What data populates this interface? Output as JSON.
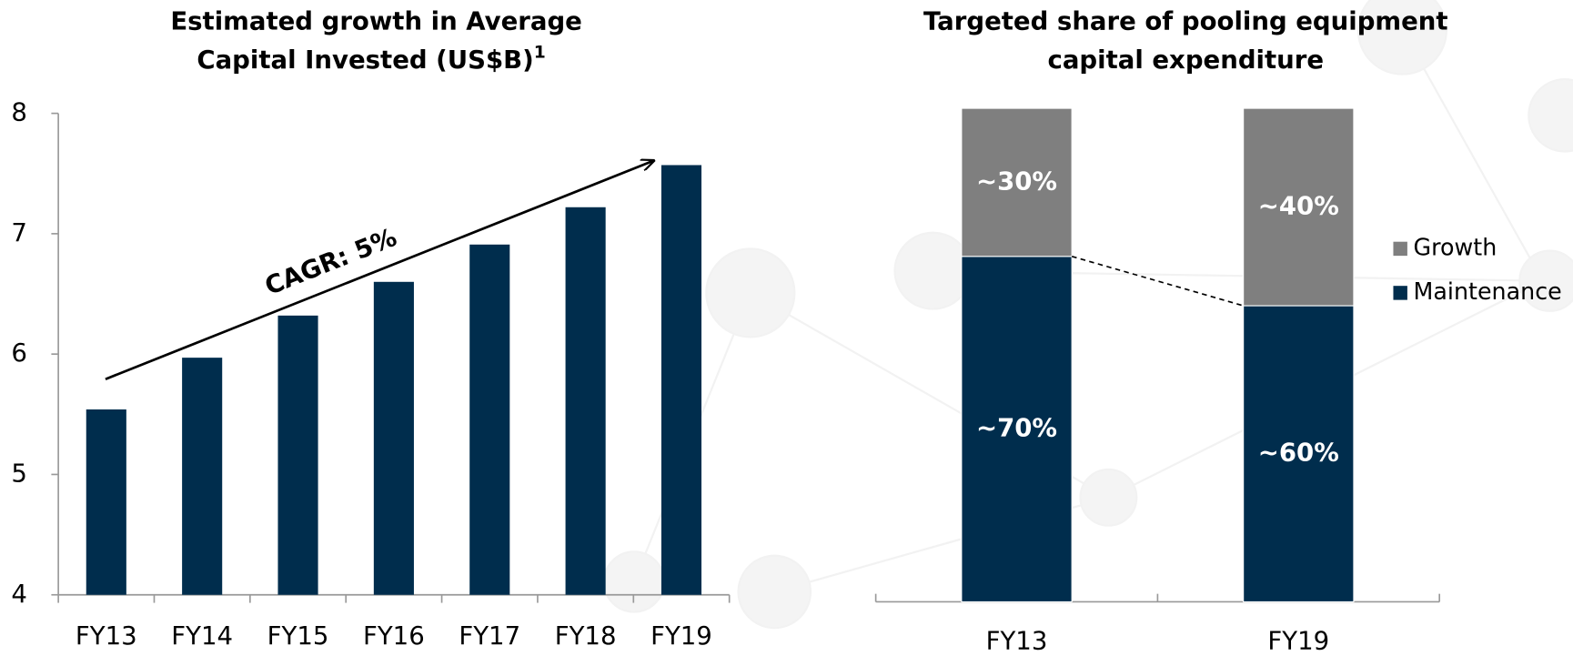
{
  "chart_data": [
    {
      "type": "bar",
      "title": [
        "Estimated growth in Average",
        "Capital Invested (US$B)"
      ],
      "title_footnote": "1",
      "annotation": "CAGR: 5%",
      "categories": [
        "FY13",
        "FY14",
        "FY15",
        "FY16",
        "FY17",
        "FY18",
        "FY19"
      ],
      "values": [
        5.54,
        5.97,
        6.32,
        6.6,
        6.91,
        7.22,
        7.57
      ],
      "color": "#002d4d",
      "ylim": [
        4,
        8
      ],
      "yticks": [
        4,
        5,
        6,
        7,
        8
      ]
    },
    {
      "type": "stacked_bar",
      "title": [
        "Targeted share of pooling equipment",
        "capital expenditure"
      ],
      "categories": [
        "FY13",
        "FY19"
      ],
      "series": [
        {
          "name": "Maintenance",
          "color": "#002d4d",
          "values": [
            70,
            60
          ],
          "value_labels": [
            "~70%",
            "~60%"
          ]
        },
        {
          "name": "Growth",
          "color": "#7f7f7f",
          "values": [
            30,
            40
          ],
          "value_labels": [
            "~30%",
            "~40%"
          ]
        }
      ],
      "ylim": [
        0,
        100
      ]
    }
  ]
}
